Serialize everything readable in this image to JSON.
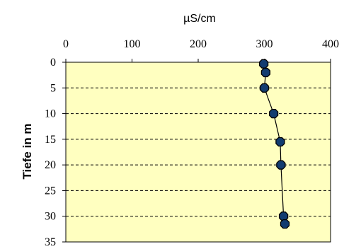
{
  "chart_data": {
    "type": "scatter",
    "xlabel": "µS/cm",
    "ylabel": "Tiefe in m",
    "xlim": [
      0,
      400
    ],
    "ylim": [
      0,
      35
    ],
    "y_inverted": true,
    "x_axis_position": "top",
    "x_ticks": [
      "0",
      "100",
      "200",
      "300",
      "400"
    ],
    "y_ticks": [
      "0",
      "5",
      "10",
      "15",
      "20",
      "25",
      "30",
      "35"
    ],
    "grid": "horizontal dashed",
    "series": [
      {
        "x": [
          299,
          302,
          300,
          314,
          324,
          325,
          329,
          331
        ],
        "y": [
          0.3,
          2,
          5,
          10,
          15.5,
          20,
          30,
          31.5
        ],
        "line": true
      }
    ],
    "colors": {
      "plot_background": "#ffffc0",
      "marker_fill": "#123c70",
      "marker_stroke": "#000000",
      "line": "#000000"
    }
  }
}
